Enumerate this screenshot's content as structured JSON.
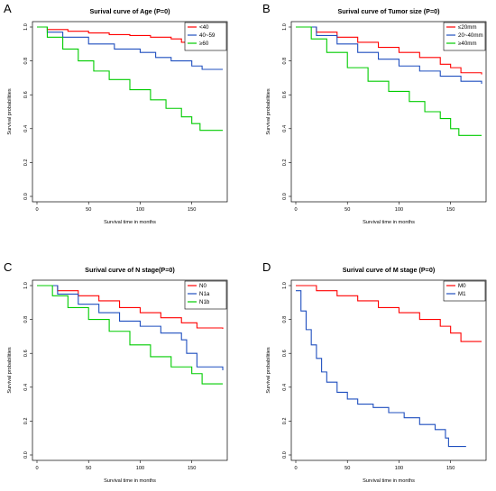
{
  "panels": [
    {
      "letter": "A",
      "chart_data": {
        "type": "line",
        "title": "Surival curve of Age (P=0)",
        "xlabel": "Survival time in months",
        "ylabel": "Survival probabilities",
        "xlim": [
          0,
          180
        ],
        "ylim": [
          0,
          1
        ],
        "xticks": [
          "0",
          "50",
          "100",
          "150"
        ],
        "yticks": [
          "0.0",
          "0.2",
          "0.4",
          "0.6",
          "0.8",
          "1.0"
        ],
        "legend_position": "top-right",
        "series": [
          {
            "name": "<40",
            "color": "#ff0000",
            "points": [
              [
                0,
                1
              ],
              [
                10,
                0.985
              ],
              [
                30,
                0.975
              ],
              [
                50,
                0.965
              ],
              [
                70,
                0.955
              ],
              [
                90,
                0.95
              ],
              [
                110,
                0.94
              ],
              [
                130,
                0.93
              ],
              [
                140,
                0.91
              ],
              [
                155,
                0.885
              ],
              [
                180,
                0.885
              ]
            ]
          },
          {
            "name": "40~59",
            "color": "#1f4fbf",
            "points": [
              [
                0,
                1
              ],
              [
                10,
                0.97
              ],
              [
                25,
                0.94
              ],
              [
                50,
                0.9
              ],
              [
                75,
                0.87
              ],
              [
                100,
                0.85
              ],
              [
                115,
                0.82
              ],
              [
                130,
                0.8
              ],
              [
                150,
                0.77
              ],
              [
                160,
                0.75
              ],
              [
                180,
                0.75
              ]
            ]
          },
          {
            "name": "≥60",
            "color": "#00cc00",
            "points": [
              [
                0,
                1
              ],
              [
                10,
                0.94
              ],
              [
                25,
                0.87
              ],
              [
                40,
                0.8
              ],
              [
                55,
                0.74
              ],
              [
                70,
                0.69
              ],
              [
                90,
                0.63
              ],
              [
                110,
                0.57
              ],
              [
                125,
                0.52
              ],
              [
                140,
                0.47
              ],
              [
                150,
                0.43
              ],
              [
                158,
                0.39
              ],
              [
                180,
                0.39
              ]
            ]
          }
        ]
      }
    },
    {
      "letter": "B",
      "chart_data": {
        "type": "line",
        "title": "Surival curve of Tumor size (P=0)",
        "xlabel": "Survival time in months",
        "ylabel": "Survival probabilities",
        "xlim": [
          0,
          180
        ],
        "ylim": [
          0,
          1
        ],
        "xticks": [
          "0",
          "50",
          "100",
          "150"
        ],
        "yticks": [
          "0.0",
          "0.2",
          "0.4",
          "0.6",
          "0.8",
          "1.0"
        ],
        "legend_position": "top-right",
        "series": [
          {
            "name": "≤20mm",
            "color": "#ff0000",
            "points": [
              [
                0,
                1
              ],
              [
                20,
                0.97
              ],
              [
                40,
                0.94
              ],
              [
                60,
                0.91
              ],
              [
                80,
                0.88
              ],
              [
                100,
                0.85
              ],
              [
                120,
                0.82
              ],
              [
                140,
                0.78
              ],
              [
                150,
                0.76
              ],
              [
                160,
                0.73
              ],
              [
                180,
                0.72
              ]
            ]
          },
          {
            "name": "20~40mm",
            "color": "#1f4fbf",
            "points": [
              [
                0,
                1
              ],
              [
                20,
                0.95
              ],
              [
                40,
                0.9
              ],
              [
                60,
                0.85
              ],
              [
                80,
                0.81
              ],
              [
                100,
                0.77
              ],
              [
                120,
                0.74
              ],
              [
                140,
                0.71
              ],
              [
                160,
                0.68
              ],
              [
                180,
                0.665
              ]
            ]
          },
          {
            "name": "≥40mm",
            "color": "#00cc00",
            "points": [
              [
                0,
                1
              ],
              [
                15,
                0.93
              ],
              [
                30,
                0.85
              ],
              [
                50,
                0.76
              ],
              [
                70,
                0.68
              ],
              [
                90,
                0.62
              ],
              [
                110,
                0.56
              ],
              [
                125,
                0.5
              ],
              [
                140,
                0.46
              ],
              [
                150,
                0.4
              ],
              [
                158,
                0.36
              ],
              [
                180,
                0.36
              ]
            ]
          }
        ]
      }
    },
    {
      "letter": "C",
      "chart_data": {
        "type": "line",
        "title": "Surival curve of N stage(P=0)",
        "xlabel": "Survival time in months",
        "ylabel": "Survival probabilities",
        "xlim": [
          0,
          180
        ],
        "ylim": [
          0,
          1
        ],
        "xticks": [
          "0",
          "50",
          "100",
          "150"
        ],
        "yticks": [
          "0.0",
          "0.2",
          "0.4",
          "0.6",
          "0.8",
          "1.0"
        ],
        "legend_position": "top-right",
        "series": [
          {
            "name": "N0",
            "color": "#ff0000",
            "points": [
              [
                0,
                1
              ],
              [
                20,
                0.97
              ],
              [
                40,
                0.94
              ],
              [
                60,
                0.91
              ],
              [
                80,
                0.87
              ],
              [
                100,
                0.84
              ],
              [
                120,
                0.81
              ],
              [
                140,
                0.78
              ],
              [
                155,
                0.75
              ],
              [
                180,
                0.745
              ]
            ]
          },
          {
            "name": "N1a",
            "color": "#1f4fbf",
            "points": [
              [
                0,
                1
              ],
              [
                20,
                0.95
              ],
              [
                40,
                0.89
              ],
              [
                60,
                0.84
              ],
              [
                80,
                0.79
              ],
              [
                100,
                0.76
              ],
              [
                120,
                0.72
              ],
              [
                140,
                0.68
              ],
              [
                145,
                0.6
              ],
              [
                155,
                0.52
              ],
              [
                180,
                0.5
              ]
            ]
          },
          {
            "name": "N1b",
            "color": "#00cc00",
            "points": [
              [
                0,
                1
              ],
              [
                15,
                0.94
              ],
              [
                30,
                0.87
              ],
              [
                50,
                0.8
              ],
              [
                70,
                0.73
              ],
              [
                90,
                0.65
              ],
              [
                110,
                0.58
              ],
              [
                130,
                0.52
              ],
              [
                150,
                0.48
              ],
              [
                160,
                0.42
              ],
              [
                180,
                0.42
              ]
            ]
          }
        ]
      }
    },
    {
      "letter": "D",
      "chart_data": {
        "type": "line",
        "title": "Surival curve of M stage (P=0)",
        "xlabel": "Survival time in months",
        "ylabel": "Survival probabilities",
        "xlim": [
          0,
          180
        ],
        "ylim": [
          0,
          1
        ],
        "xticks": [
          "0",
          "50",
          "100",
          "150"
        ],
        "yticks": [
          "0.0",
          "0.2",
          "0.4",
          "0.6",
          "0.8",
          "1.0"
        ],
        "legend_position": "top-right",
        "series": [
          {
            "name": "M0",
            "color": "#ff0000",
            "points": [
              [
                0,
                1
              ],
              [
                20,
                0.97
              ],
              [
                40,
                0.94
              ],
              [
                60,
                0.91
              ],
              [
                80,
                0.87
              ],
              [
                100,
                0.84
              ],
              [
                120,
                0.8
              ],
              [
                140,
                0.76
              ],
              [
                150,
                0.72
              ],
              [
                160,
                0.67
              ],
              [
                180,
                0.67
              ]
            ]
          },
          {
            "name": "M1",
            "color": "#1f4fbf",
            "points": [
              [
                0,
                0.97
              ],
              [
                5,
                0.85
              ],
              [
                10,
                0.74
              ],
              [
                15,
                0.65
              ],
              [
                20,
                0.57
              ],
              [
                25,
                0.49
              ],
              [
                30,
                0.43
              ],
              [
                40,
                0.37
              ],
              [
                50,
                0.33
              ],
              [
                60,
                0.3
              ],
              [
                75,
                0.28
              ],
              [
                90,
                0.25
              ],
              [
                105,
                0.22
              ],
              [
                120,
                0.18
              ],
              [
                135,
                0.15
              ],
              [
                145,
                0.1
              ],
              [
                148,
                0.05
              ],
              [
                165,
                0.05
              ]
            ]
          }
        ]
      }
    }
  ]
}
